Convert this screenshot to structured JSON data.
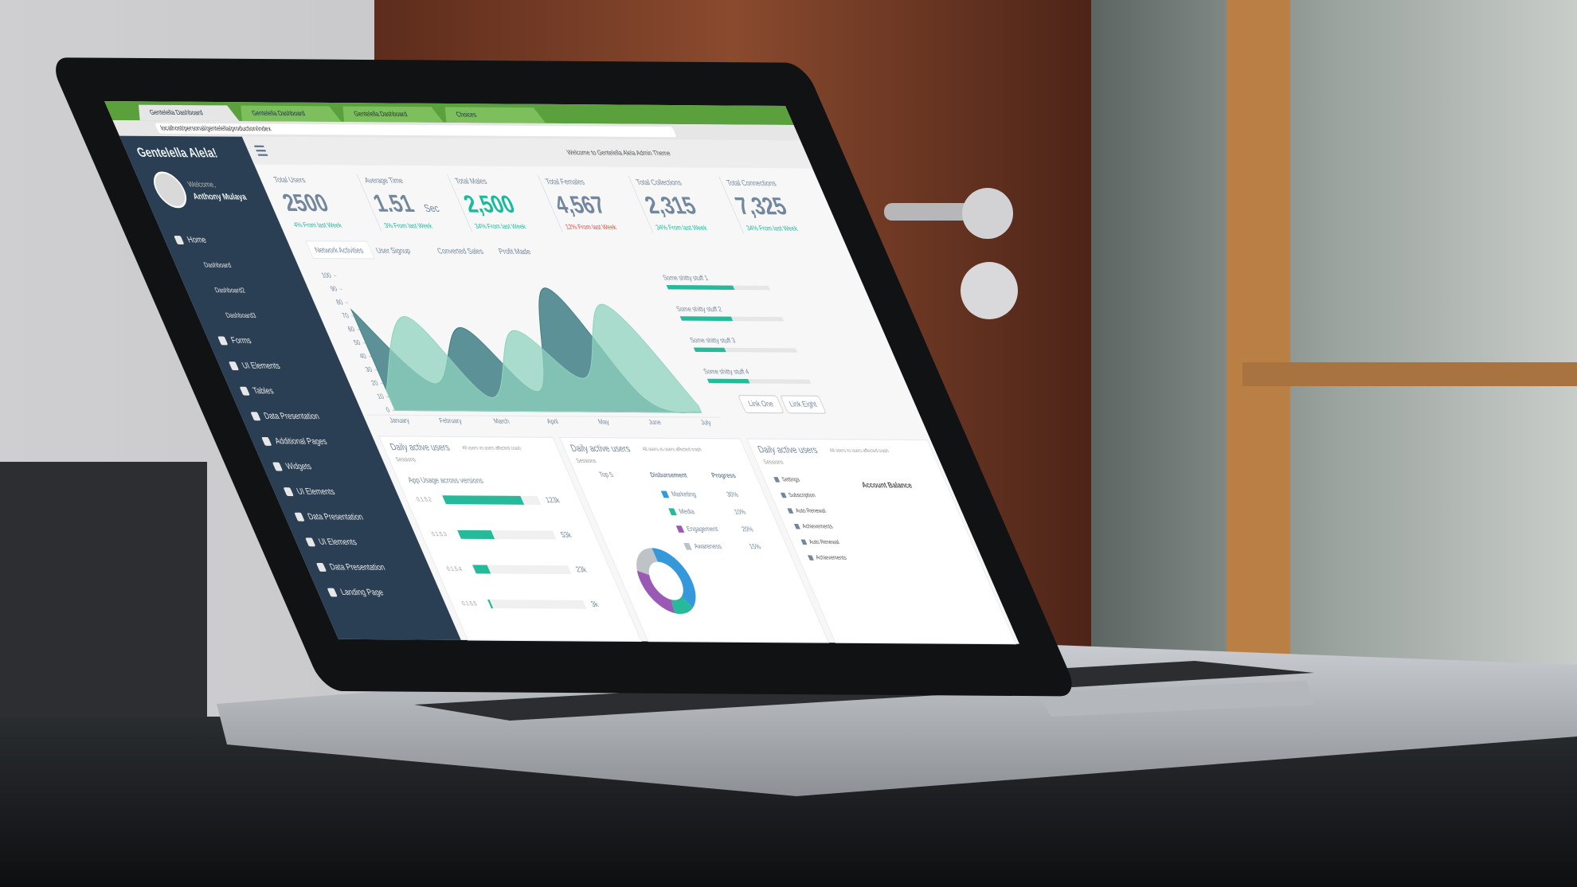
{
  "browser": {
    "tabs": [
      "Gentelella Dashboard",
      "Gentelella Dashboard",
      "Gentelella Dashboard",
      "Choices"
    ],
    "url": "localhost/personal/gentelella/production/index"
  },
  "sidebar": {
    "title": "Gentelella Alela!",
    "welcome": "Welcome,",
    "user": "Anthony Mulaya",
    "nav": [
      "Home",
      "Dashboard",
      "Dashboard2",
      "Dashboard3",
      "Forms",
      "UI Elements",
      "Tables",
      "Data Presentation",
      "Additional Pages",
      "Widgets",
      "UI Elements",
      "Data Presentation",
      "UI Elements",
      "Data Presentation",
      "Landing Page"
    ]
  },
  "topbar": {
    "welcome": "Welcome to Gentelella Alela Admin Theme"
  },
  "stats": [
    {
      "label": "Total Users",
      "value": "2500",
      "change": "4% From last Week"
    },
    {
      "label": "Average Time",
      "value": "1.51",
      "unit": "Sec",
      "change": "3% From last Week"
    },
    {
      "label": "Total Males",
      "value": "2,500",
      "change": "34% From last Week"
    },
    {
      "label": "Total Females",
      "value": "4,567",
      "change": "12% From last Week"
    },
    {
      "label": "Total Collections",
      "value": "2,315",
      "change": "34% From last Week"
    },
    {
      "label": "Total Connections",
      "value": "7,325",
      "change": "34% From last Week"
    }
  ],
  "tabs": [
    "Network Activities",
    "User Signup",
    "Converted Sales",
    "Profit Made"
  ],
  "area_chart": {
    "type": "area",
    "categories": [
      "January",
      "February",
      "March",
      "April",
      "May",
      "June",
      "July"
    ],
    "series": [
      {
        "color": "#3f7f86",
        "values": [
          75,
          20,
          62,
          15,
          92,
          10,
          0
        ]
      },
      {
        "color": "#8fd3bd",
        "values": [
          15,
          70,
          10,
          60,
          25,
          80,
          5
        ]
      }
    ],
    "ylim": [
      0,
      100
    ],
    "yticks": [
      0,
      10,
      20,
      30,
      40,
      50,
      60,
      70,
      80,
      90,
      100
    ]
  },
  "progress": {
    "labels": [
      "Some shitty stuff 1",
      "Some shitty stuff 2",
      "Some shitty stuff 3",
      "Some shitty stuff 4"
    ],
    "values": [
      65,
      50,
      30,
      40
    ],
    "xlim": [
      0,
      100
    ],
    "color": "#26b99a"
  },
  "links": [
    "Link One",
    "Link Eight"
  ],
  "panels": [
    {
      "title": "Daily active users",
      "note": "All users vs users affected crash",
      "subtitle": "Sessions"
    },
    {
      "title": "Daily active users",
      "note": "All users vs users affected crash",
      "subtitle": "Sessions"
    },
    {
      "title": "Daily active users",
      "note": "All users vs users affected crash",
      "subtitle": "Sessions"
    }
  ],
  "app_usage": {
    "title": "App Usage across versions",
    "versions": [
      "0.1.5.2",
      "0.1.5.3",
      "0.1.5.4",
      "0.1.5.5"
    ],
    "values": [
      123000,
      53000,
      23000,
      3000
    ],
    "value_labels": [
      "123k",
      "53k",
      "23k",
      "3k"
    ],
    "xlim": [
      0,
      150000
    ],
    "color": "#26b99a"
  },
  "donut": {
    "headers": [
      "Top 5",
      "Disbursement",
      "Progress"
    ],
    "labels": [
      "Marketing",
      "Media",
      "Engagement",
      "Awareness"
    ],
    "values": [
      30,
      10,
      20,
      15
    ],
    "value_labels": [
      "30%",
      "10%",
      "20%",
      "15%"
    ],
    "colors": [
      "#3498db",
      "#26b99a",
      "#9b59b6",
      "#bdc3c7"
    ]
  },
  "settings": {
    "items": [
      "Settings",
      "Subscription",
      "Auto Renewal",
      "Achievements",
      "Auto Renewal",
      "Achievements"
    ],
    "account_title": "Account Balance"
  }
}
